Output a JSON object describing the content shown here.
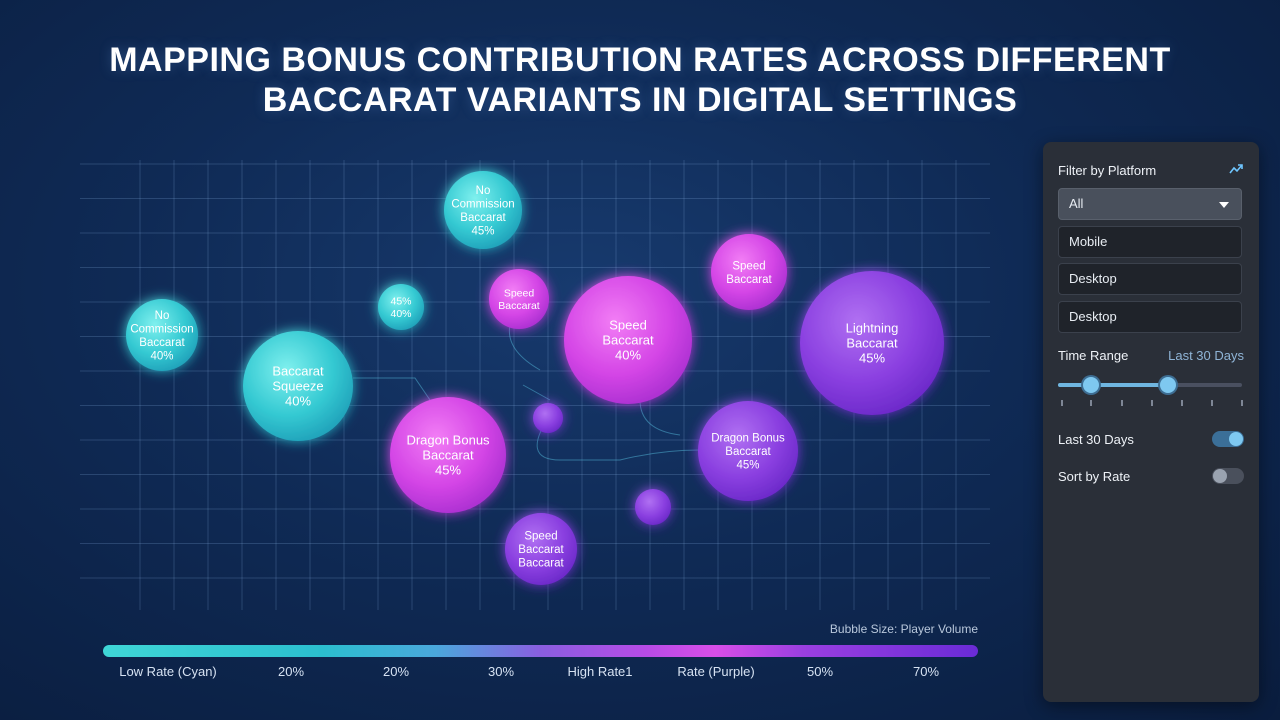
{
  "title_line1": "MAPPING BONUS CONTRIBUTION RATES ACROSS DIFFERENT",
  "title_line2": "BACCARAT VARIANTS IN DIGITAL SETTINGS",
  "colors": {
    "cyan": "#3fd0d6",
    "magenta": "#d84ee8",
    "purple": "#8a3fe0",
    "panel_bg": "#2a2f38",
    "accent": "#6fc6ff"
  },
  "chart_data": {
    "type": "scatter",
    "variant": "bubble",
    "size_legend": "Bubble Size: Player Volume",
    "grid": true,
    "bubbles": [
      {
        "lines": [
          "No",
          "Commission",
          "Baccarat",
          "45%"
        ],
        "color": "cyan"
      },
      {
        "lines": [
          "No",
          "Commission",
          "Baccarat",
          "40%"
        ],
        "color": "cyan"
      },
      {
        "lines": [
          "45%",
          "40%"
        ],
        "color": "cyan"
      },
      {
        "lines": [
          "Baccarat",
          "Squeeze",
          "40%"
        ],
        "color": "cyan"
      },
      {
        "lines": [
          "Speed",
          "Baccarat"
        ],
        "color": "magenta"
      },
      {
        "lines": [
          "Speed",
          "Baccarat",
          "40%"
        ],
        "color": "magenta"
      },
      {
        "lines": [
          "Speed",
          "Baccarat"
        ],
        "color": "magenta"
      },
      {
        "lines": [
          "Lightning",
          "Baccarat",
          "45%"
        ],
        "color": "purple"
      },
      {
        "lines": [
          "Dragon Bonus",
          "Baccarat",
          "45%"
        ],
        "color": "magenta"
      },
      {
        "lines": [
          "Dragon Bonus",
          "Baccarat",
          "45%"
        ],
        "color": "purple"
      },
      {
        "lines": [],
        "color": "purple"
      },
      {
        "lines": [],
        "color": "purple"
      },
      {
        "lines": [
          "Speed",
          "Baccarat",
          "Baccarat"
        ],
        "color": "purple"
      }
    ],
    "color_scale": {
      "labels": [
        "Low Rate (Cyan)",
        "20%",
        "20%",
        "30%",
        "High Rate1",
        "Rate (Purple)",
        "50%",
        "70%"
      ]
    }
  },
  "panel": {
    "filter_title": "Filter by Platform",
    "filter_icon": "chart-line-icon",
    "options": [
      "All",
      "Mobile",
      "Desktop",
      "Desktop"
    ],
    "time_range_label": "Time Range",
    "time_range_value": "Last 30 Days",
    "slider": {
      "low": 0.18,
      "high": 0.6
    },
    "toggle_last30_label": "Last 30 Days",
    "toggle_last30_on": true,
    "toggle_sort_label": "Sort by Rate",
    "toggle_sort_on": false
  }
}
